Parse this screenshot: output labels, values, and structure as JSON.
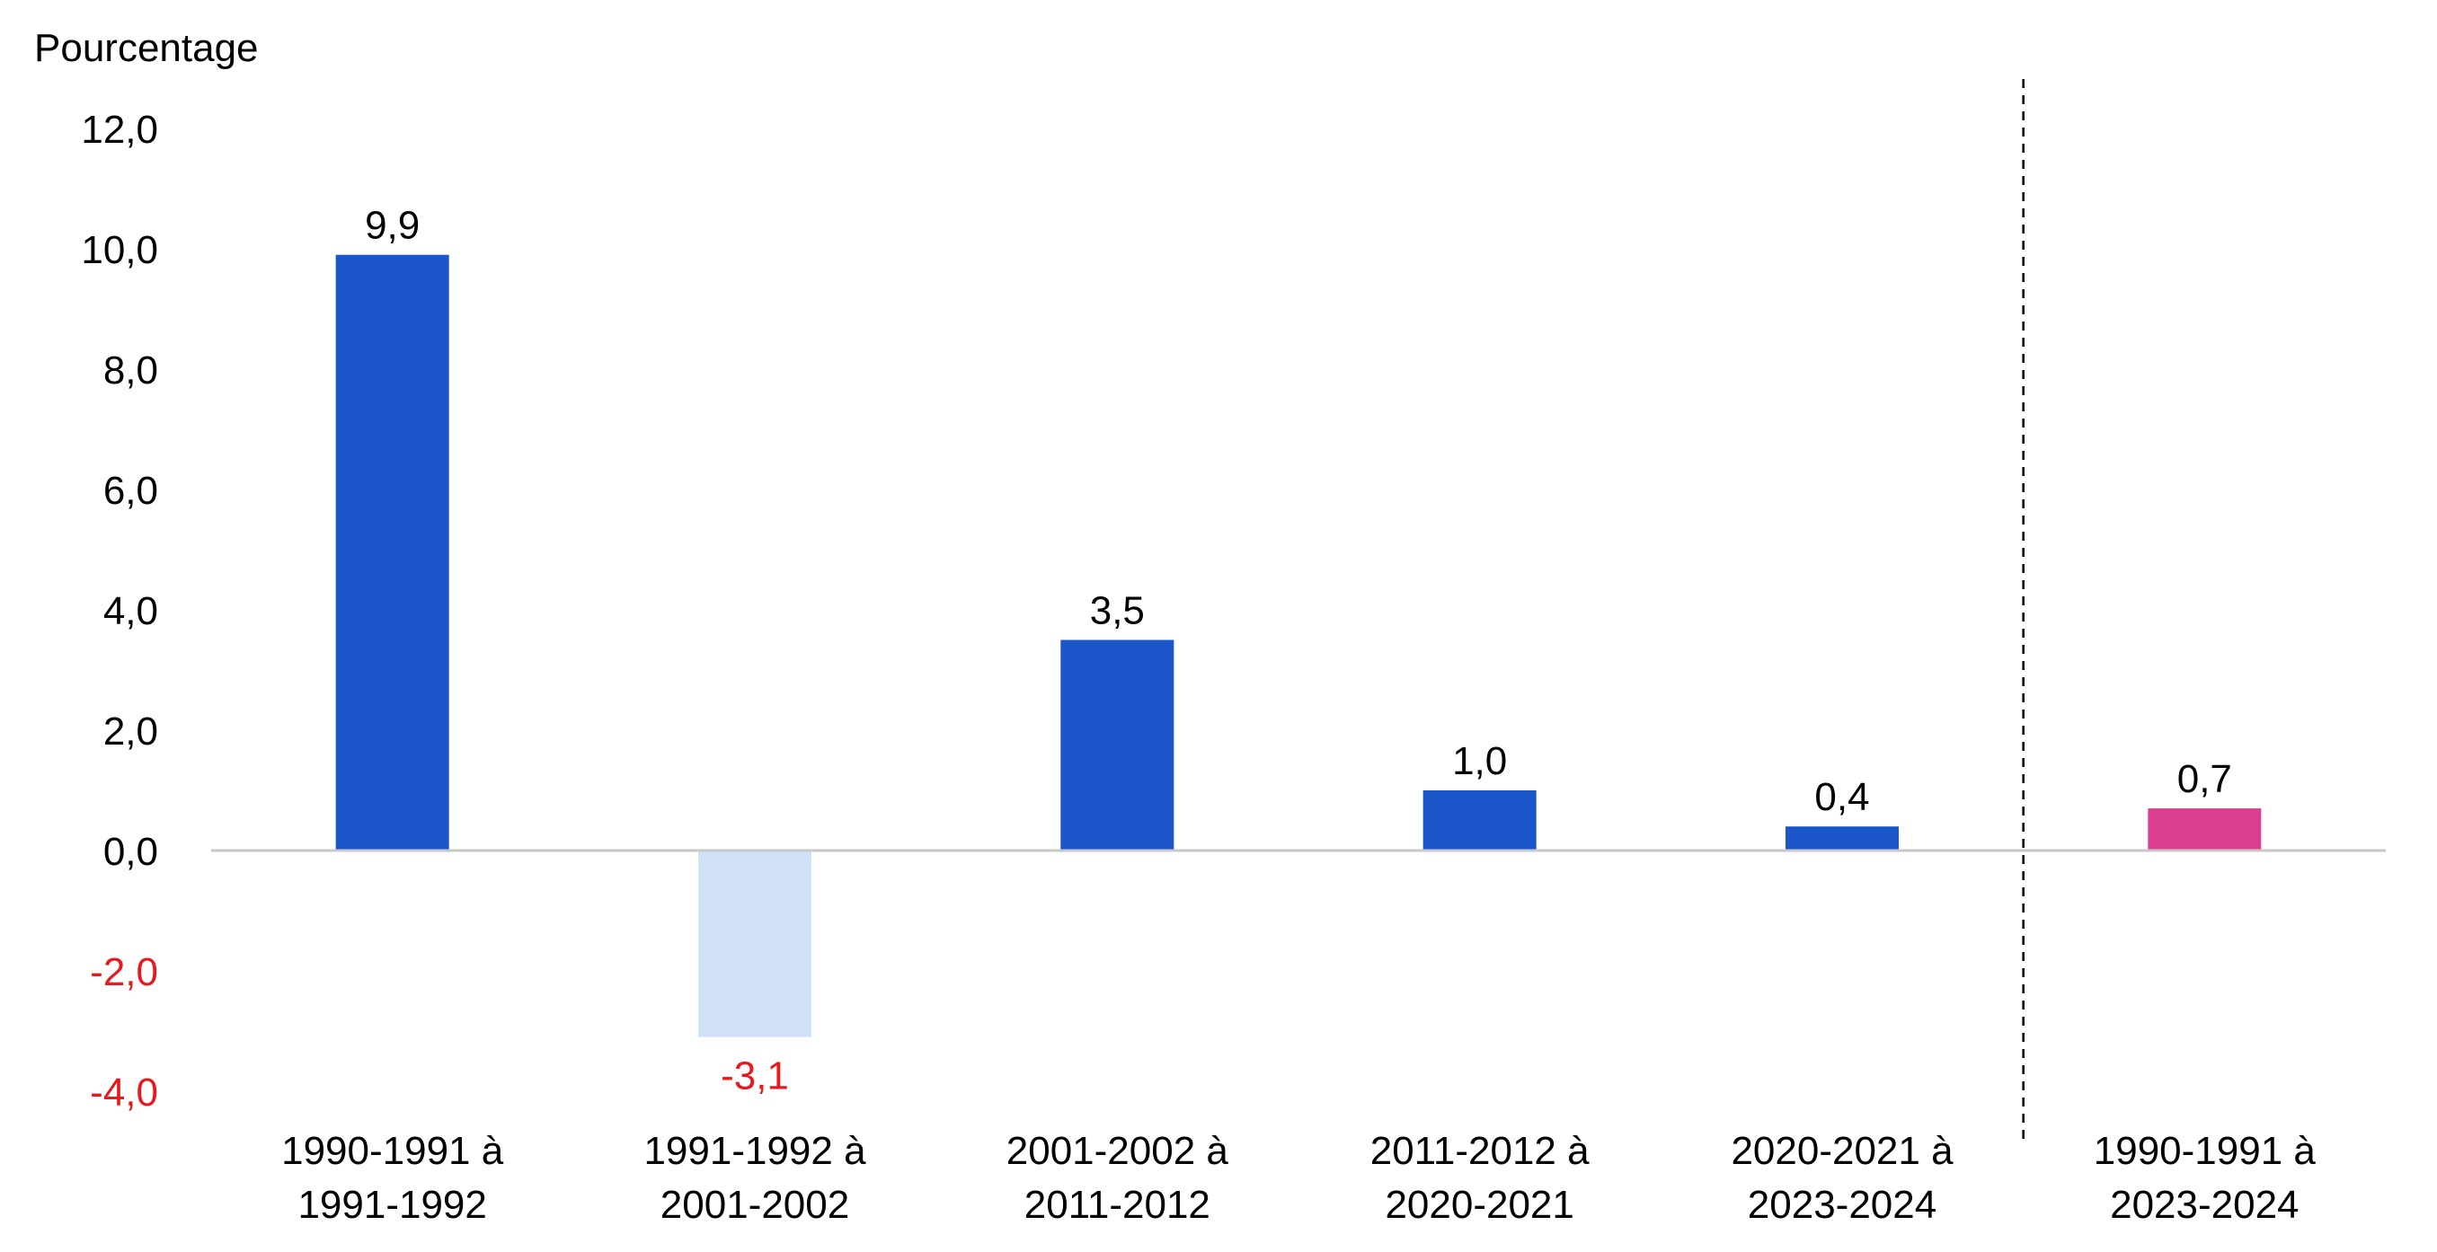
{
  "chart_data": {
    "type": "bar",
    "ylabel": "Pourcentage",
    "categories": [
      [
        "1990-1991 à",
        "1991-1992"
      ],
      [
        "1991-1992 à",
        "2001-2002"
      ],
      [
        "2001-2002 à",
        "2011-2012"
      ],
      [
        "2011-2012 à",
        "2020-2021"
      ],
      [
        "2020-2021 à",
        "2023-2024"
      ],
      [
        "1990-1991 à",
        "2023-2024"
      ]
    ],
    "values": [
      9.9,
      -3.1,
      3.5,
      1.0,
      0.4,
      0.7
    ],
    "value_labels": [
      "9,9",
      "-3,1",
      "3,5",
      "1,0",
      "0,4",
      "0,7"
    ],
    "bar_colors": [
      "#1a56c9",
      "#cfe0f7",
      "#1a56c9",
      "#1a56c9",
      "#1a56c9",
      "#db3e8e"
    ],
    "value_label_colors": [
      "#000000",
      "#e8191c",
      "#000000",
      "#000000",
      "#000000",
      "#000000"
    ],
    "ylim": [
      -4,
      12
    ],
    "yticks": [
      12,
      10,
      8,
      6,
      4,
      2,
      0,
      -2,
      -4
    ],
    "ytick_labels": [
      "12,0",
      "10,0",
      "8,0",
      "6,0",
      "4,0",
      "2,0",
      "0,0",
      "-2,0",
      "-4,0"
    ],
    "ytick_label_colors": [
      "#000000",
      "#000000",
      "#000000",
      "#000000",
      "#000000",
      "#000000",
      "#000000",
      "#e8191c",
      "#e8191c"
    ],
    "separator_after_category": 4,
    "grid": false,
    "legend": "none",
    "colors": {
      "axis_line": "#c8c8c8",
      "separator": "#000000",
      "text": "#000000",
      "negative_text": "#e8191c"
    }
  }
}
